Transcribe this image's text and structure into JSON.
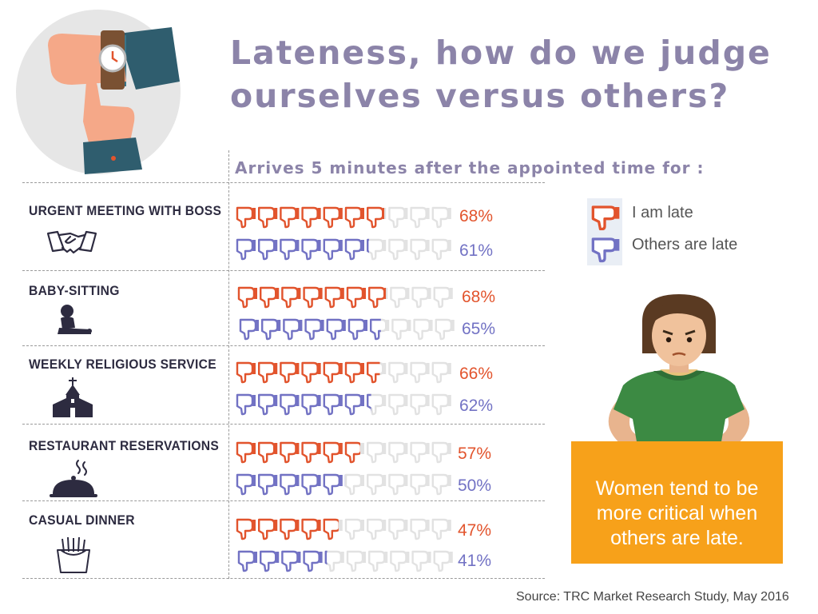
{
  "header": {
    "title_line1": "Lateness, how do we judge",
    "title_line2": "ourselves versus others?",
    "subtitle": "Arrives 5 minutes after the appointed time for :"
  },
  "legend": {
    "self_label": "I am late",
    "others_label": "Others are late"
  },
  "callout": {
    "text": "Women tend to be\nmore critical when\nothers are late."
  },
  "source": "Source: TRC Market Research Study, May 2016",
  "icons": [
    "watch-hand-icon",
    "handshake-icon",
    "baby-icon",
    "church-icon",
    "cloche-icon",
    "fries-icon",
    "thumbs-down-icon"
  ],
  "colors": {
    "self": "#e2542d",
    "others": "#7272c4",
    "empty": "#e2e2e2",
    "title": "#8c84a9",
    "callout": "#f7a11a"
  },
  "chart_data": {
    "type": "bar",
    "unit": "%",
    "categories": [
      "URGENT MEETING WITH BOSS",
      "BABY-SITTING",
      "WEEKLY RELIGIOUS SERVICE",
      "RESTAURANT RESERVATIONS",
      "CASUAL DINNER"
    ],
    "series": [
      {
        "name": "I am late",
        "values": [
          68,
          68,
          66,
          57,
          47
        ],
        "labels": [
          "68%",
          "68%",
          "66%",
          "57%",
          "47%"
        ]
      },
      {
        "name": "Others are late",
        "values": [
          61,
          65,
          62,
          50,
          41
        ],
        "labels": [
          "61%",
          "65%",
          "62%",
          "50%",
          "41%"
        ]
      }
    ],
    "ylim": [
      0,
      100
    ]
  }
}
